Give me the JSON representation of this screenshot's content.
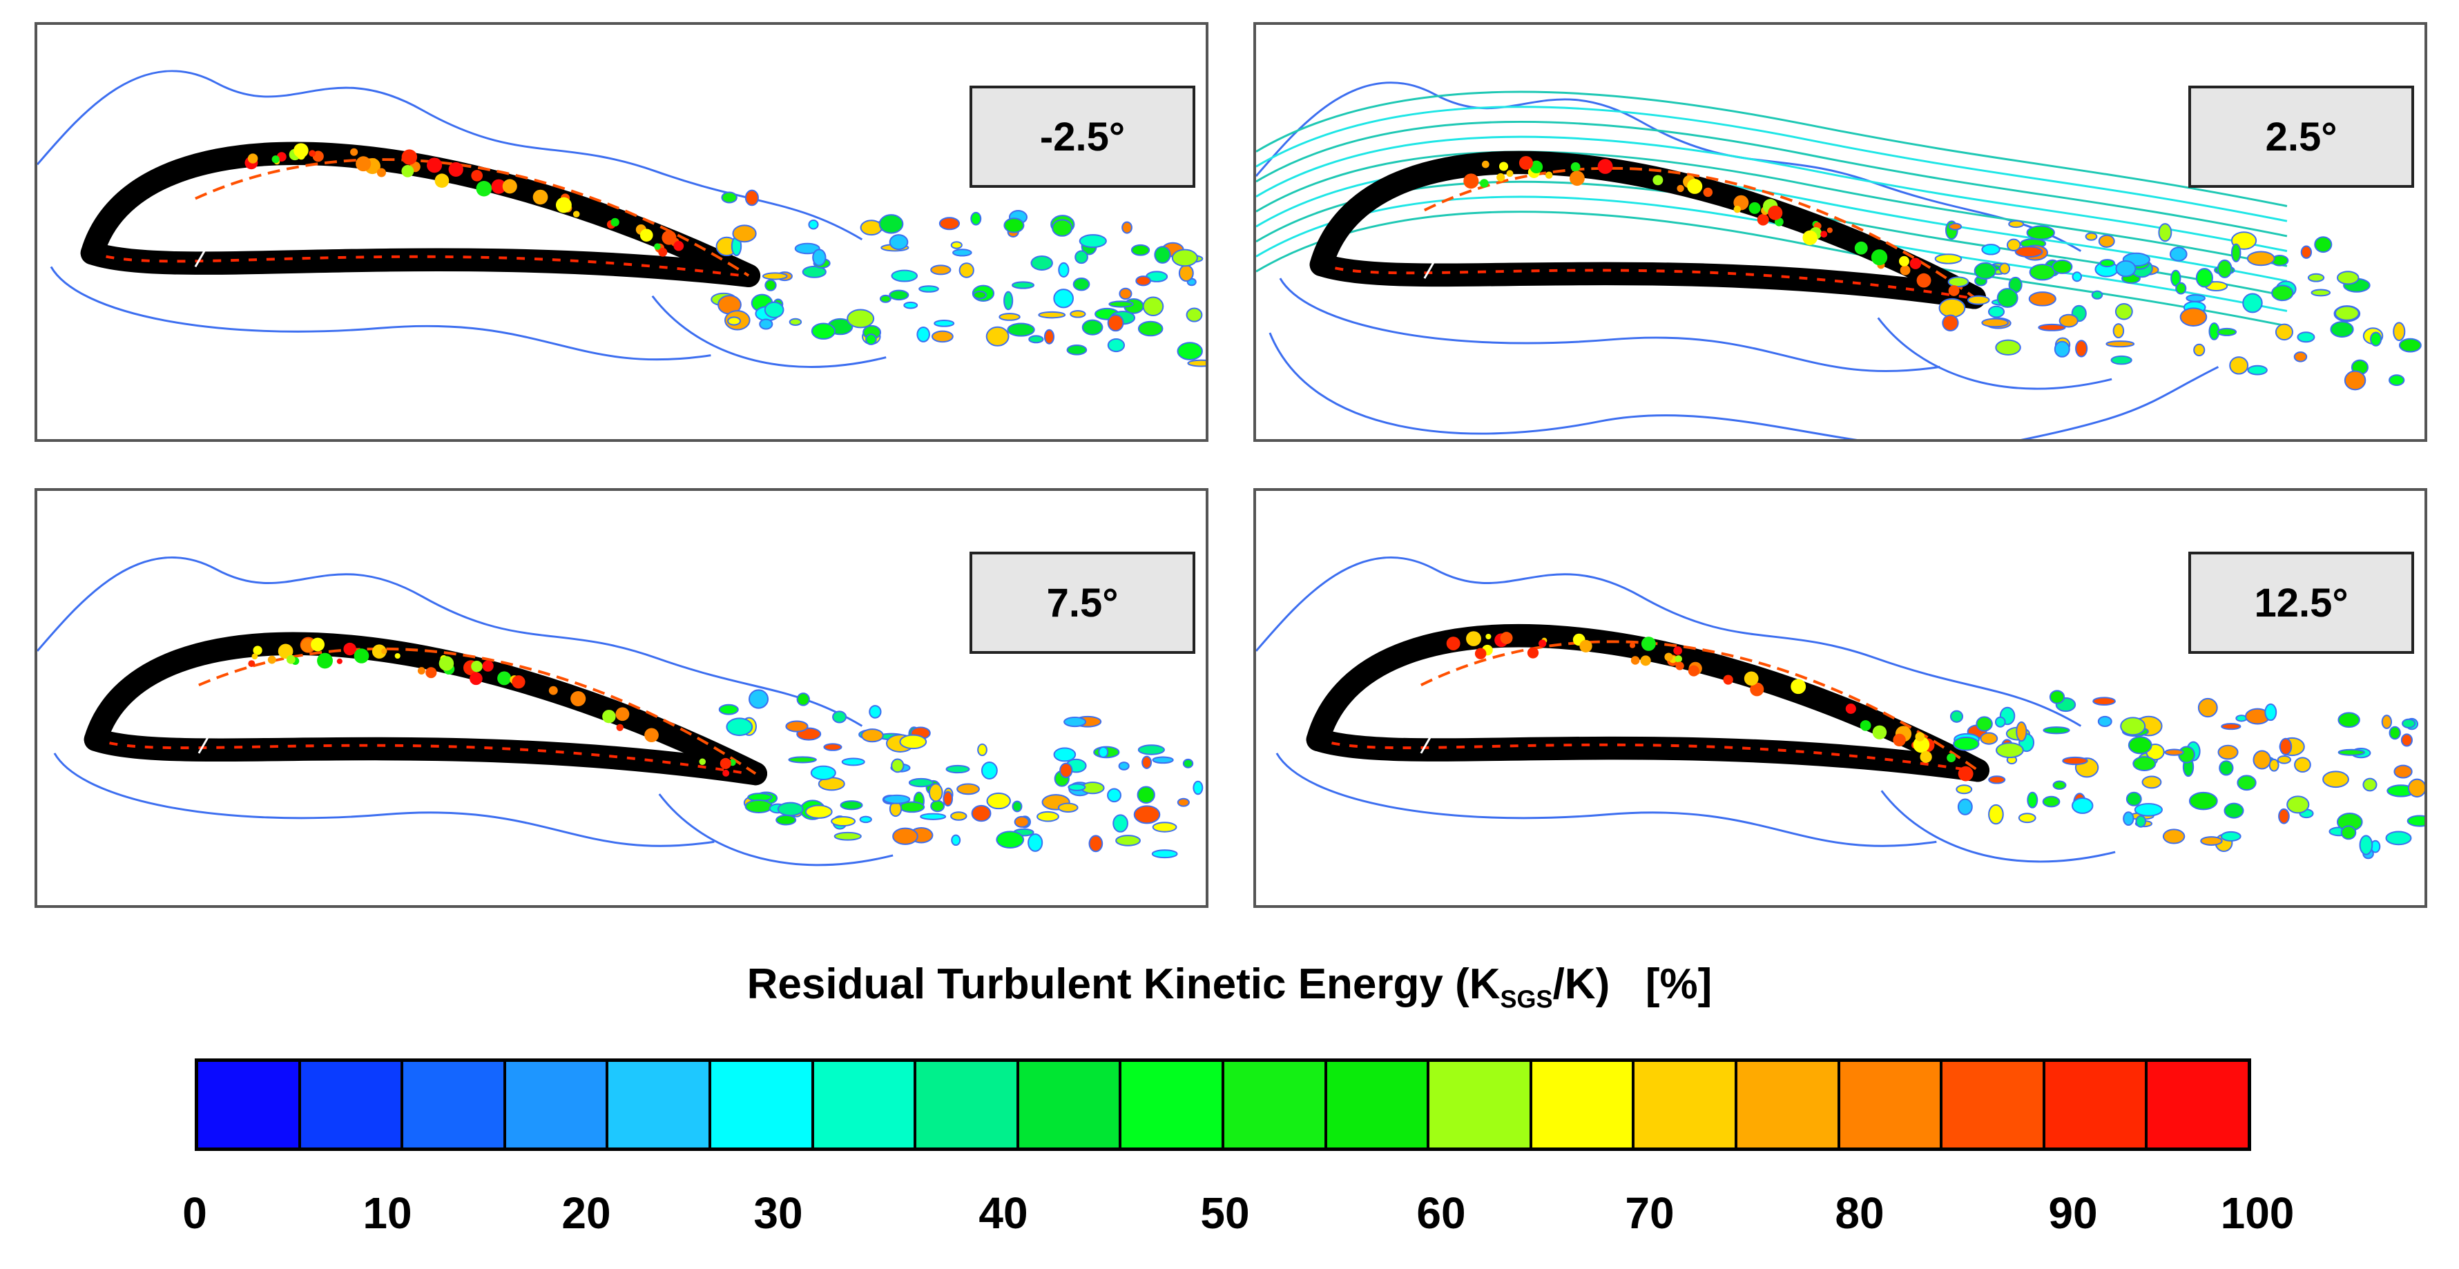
{
  "figure": {
    "panels": [
      {
        "id": "p1",
        "angle": "-2.5°"
      },
      {
        "id": "p2",
        "angle": "2.5°"
      },
      {
        "id": "p3",
        "angle": "7.5°"
      },
      {
        "id": "p4",
        "angle": "12.5°"
      }
    ],
    "colorbar": {
      "title_main": "Residual Turbulent Kinetic Energy (K",
      "title_sub": "SGS",
      "title_tail": "/K)",
      "title_unit": "[%]",
      "ticks": [
        "0",
        "10",
        "20",
        "30",
        "40",
        "50",
        "60",
        "70",
        "80",
        "90",
        "100"
      ],
      "range": [
        0,
        100
      ],
      "colors": [
        "#0a0aff",
        "#0a3cff",
        "#1466ff",
        "#1e96ff",
        "#1ec8ff",
        "#00ffff",
        "#00ffc8",
        "#00f08c",
        "#00e632",
        "#00ff1e",
        "#14f014",
        "#0aeb0a",
        "#a0ff14",
        "#ffff00",
        "#ffd200",
        "#ffaa00",
        "#ff8200",
        "#ff5000",
        "#ff2800",
        "#ff0a0a"
      ]
    },
    "style": {
      "contour_blue": "#3c6ef0",
      "contour_cyan": "#1ee6e6",
      "airfoil": "#000000"
    }
  }
}
